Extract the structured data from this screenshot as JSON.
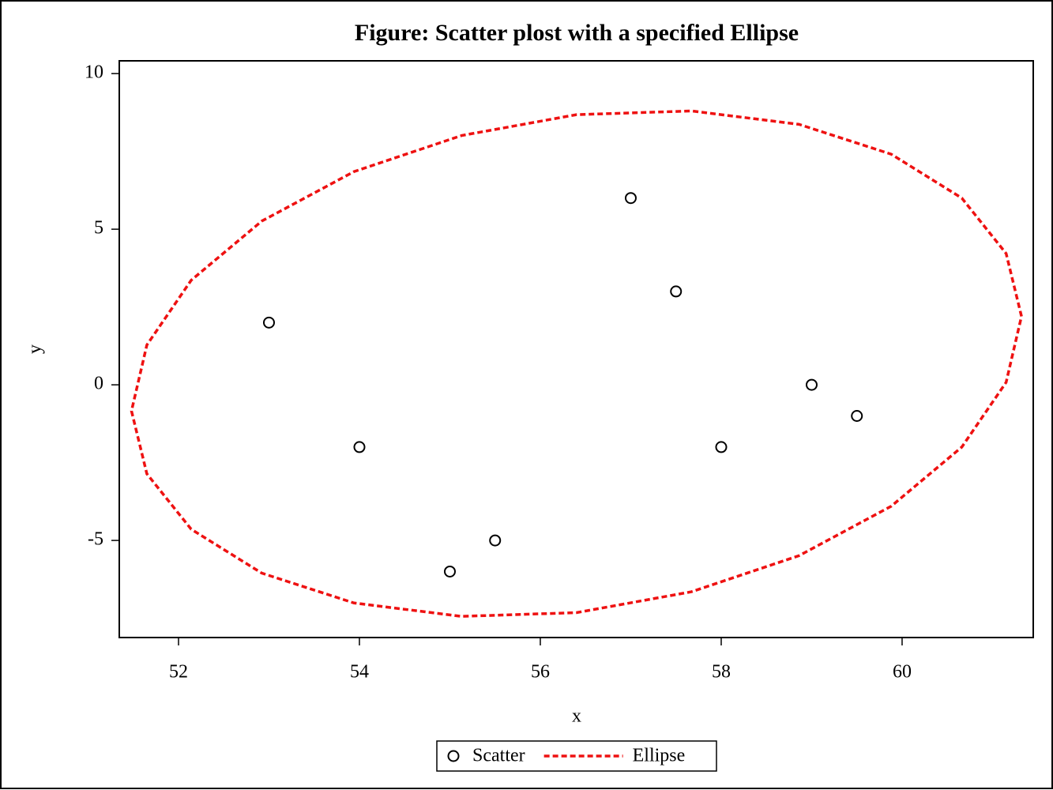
{
  "chart_data": {
    "type": "scatter",
    "title": "Figure: Scatter plost with a specified Ellipse",
    "x_label": "x",
    "y_label": "y",
    "xlim": [
      51.345,
      61.45
    ],
    "ylim": [
      -8.12,
      10.41
    ],
    "xticks": [
      52,
      54,
      56,
      58,
      60
    ],
    "yticks": [
      -5,
      0,
      5,
      10
    ],
    "grid": false,
    "legend": "bottom",
    "series": [
      {
        "name": "Scatter",
        "type": "scatter",
        "color": "#000000",
        "x": [
          53,
          54,
          55,
          55.5,
          57,
          57.5,
          58,
          59,
          59.5
        ],
        "values": [
          2,
          -2,
          -6,
          -5,
          6,
          3,
          -2,
          0,
          -1
        ]
      },
      {
        "name": "Ellipse",
        "type": "line",
        "color": "#ee1111",
        "dashed": true,
        "x": [
          61.32,
          61.15,
          60.66,
          59.88,
          58.86,
          57.67,
          56.4,
          55.13,
          53.94,
          52.92,
          52.14,
          51.65,
          51.48,
          51.65,
          52.14,
          52.92,
          53.94,
          55.13,
          56.4,
          57.67,
          58.86,
          59.88,
          60.66,
          61.15,
          61.32
        ],
        "values": [
          2.2,
          4.22,
          6.0,
          7.41,
          8.37,
          8.8,
          8.68,
          8.01,
          6.85,
          5.26,
          3.36,
          1.28,
          -0.84,
          -2.86,
          -4.64,
          -6.05,
          -7.01,
          -7.44,
          -7.32,
          -6.65,
          -5.49,
          -3.9,
          -2.0,
          0.08,
          2.2
        ]
      }
    ]
  }
}
